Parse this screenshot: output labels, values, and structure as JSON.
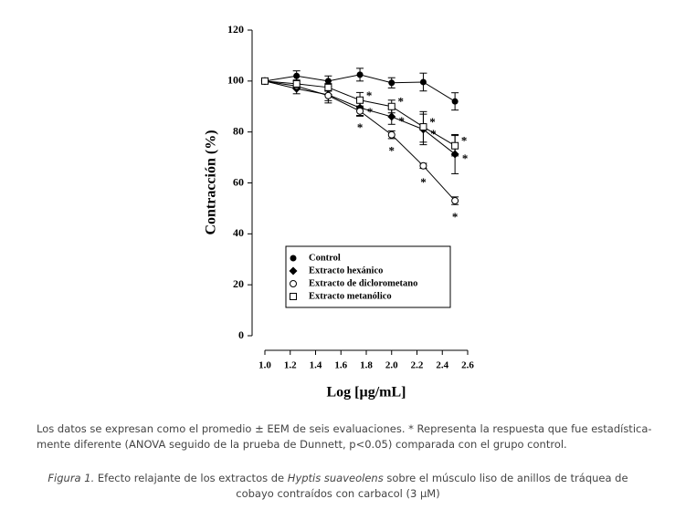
{
  "chart_data": {
    "type": "line",
    "x_label": "Log [µg/mL]",
    "y_label": "Contracción (%)",
    "x": [
      1,
      1.25,
      1.5,
      1.75,
      2,
      2.25,
      2.5
    ],
    "xlim": [
      1,
      2.6
    ],
    "xticks": [
      {
        "value": 1,
        "label": "1.0"
      },
      1.2,
      1.4,
      1.6,
      1.8,
      {
        "value": 2,
        "label": "2.0"
      },
      2.2,
      2.4,
      2.6
    ],
    "ylim": [
      0,
      120
    ],
    "yticks": [
      0,
      20,
      40,
      60,
      80,
      100,
      120
    ],
    "grid": false,
    "legend": "lower center",
    "series": [
      {
        "name": "Control",
        "color": "#000000",
        "marker": "circle-filled",
        "values": [
          100,
          102,
          100,
          102.5,
          99.3,
          99.6,
          92
        ],
        "errors": [
          0,
          2,
          2,
          2.5,
          2,
          3.5,
          3.4
        ],
        "significance": [
          null,
          null,
          null,
          null,
          null,
          null,
          null
        ]
      },
      {
        "name": "Extracto hexánico",
        "color": "#000000",
        "marker": "diamond",
        "values": [
          100,
          97,
          94.6,
          89.5,
          86,
          81,
          71.3
        ],
        "errors": [
          0,
          2,
          3.2,
          3,
          3,
          6,
          7.7
        ],
        "significance": [
          null,
          null,
          null,
          "*",
          "*",
          "*",
          "*"
        ]
      },
      {
        "name": "Extracto de diclorometano",
        "color": "#000000",
        "marker": "circle-open",
        "values": [
          100,
          98,
          94.3,
          88.2,
          78.9,
          66.7,
          53
        ],
        "errors": [
          0,
          1,
          2,
          2,
          1.5,
          1,
          1.5
        ],
        "significance": [
          null,
          null,
          null,
          "*",
          "*",
          "*",
          "*"
        ]
      },
      {
        "name": "Extracto metanólico",
        "color": "#000000",
        "marker": "square-open",
        "values": [
          100,
          98.9,
          97.5,
          92.5,
          90,
          82,
          74.6
        ],
        "errors": [
          0,
          1.5,
          1.5,
          3,
          2.5,
          6,
          4
        ],
        "significance": [
          null,
          null,
          null,
          "*",
          "*",
          "*",
          "*"
        ]
      }
    ]
  },
  "note": [
    "Los datos se expresan como el promedio ± EEM de seis evaluaciones. * Representa la respuesta que fue estadística-",
    "mente diferente (ANOVA seguido de la prueba de Dunnett, p<0.05) comparada con el grupo control."
  ],
  "caption": {
    "label": "Figura 1.",
    "text1": "Efecto relajante de los extractos de",
    "species": "Hyptis suaveolens",
    "text2": "sobre el músculo liso de anillos de tráquea de",
    "line2": "cobayo contraídos con carbacol (3 µM)"
  }
}
